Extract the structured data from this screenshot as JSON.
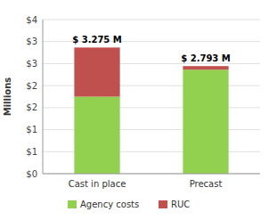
{
  "chart_data": {
    "type": "bar",
    "stacked": true,
    "categories": [
      "Cast in place",
      "Precast"
    ],
    "series": [
      {
        "name": "Agency costs",
        "color": "#92d050",
        "values": [
          2.0,
          2.7
        ]
      },
      {
        "name": "RUC",
        "color": "#c0504d",
        "values": [
          1.275,
          0.093
        ]
      }
    ],
    "totals": [
      3.275,
      2.793
    ],
    "total_labels": [
      "$ 3.275 M",
      "$ 2.793 M"
    ],
    "ylabel": "Millions",
    "ylim": [
      0,
      4.0
    ],
    "yticks": [
      {
        "value": 0,
        "label": "$0"
      },
      {
        "value": 0.571,
        "label": "$1"
      },
      {
        "value": 1.143,
        "label": "$1"
      },
      {
        "value": 1.714,
        "label": "$2"
      },
      {
        "value": 2.286,
        "label": "$2"
      },
      {
        "value": 2.857,
        "label": "$3"
      },
      {
        "value": 3.429,
        "label": "$3"
      },
      {
        "value": 4.0,
        "label": "$4"
      }
    ],
    "grid": true,
    "legend": "bottom"
  }
}
